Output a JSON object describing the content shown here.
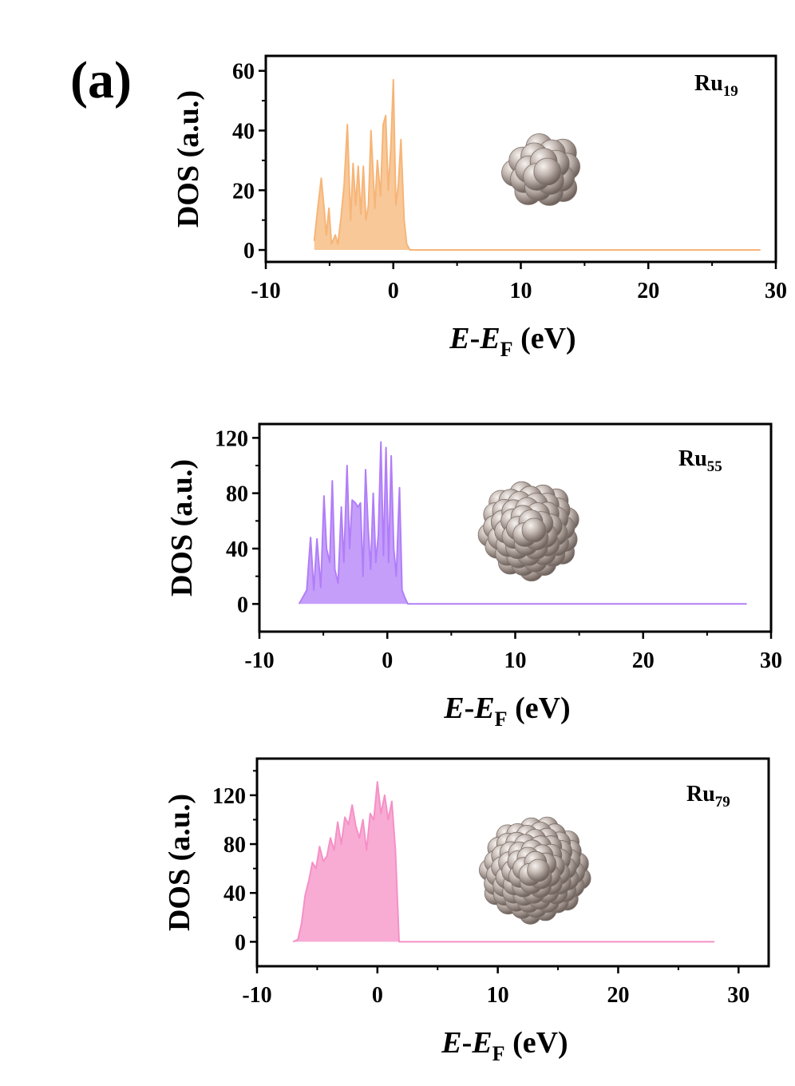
{
  "figure": {
    "panel_label": "(a)"
  },
  "colors": {
    "orange": "#f6b577",
    "purple": "#b17ef8",
    "pink": "#f590c6",
    "atom": "#a99c96"
  },
  "chart_data": [
    {
      "type": "area",
      "title": "",
      "xlabel": "E-E_F (eV)",
      "xlabel_parts": {
        "italic1": "E",
        "dash": "-",
        "italic2": "E",
        "sub": "F",
        "unit": " (eV)"
      },
      "ylabel": "DOS (a.u.)",
      "xlim": [
        -10,
        30
      ],
      "ylim": [
        -4,
        65
      ],
      "x_ticks": [
        -10,
        0,
        10,
        20,
        30
      ],
      "x_tick_labels": [
        "-10",
        "0",
        "10",
        "20",
        "30"
      ],
      "y_ticks": [
        0,
        20,
        40,
        60
      ],
      "y_tick_labels": [
        "0",
        "20",
        "40",
        "60"
      ],
      "annotation": {
        "base": "Ru",
        "sub": "19"
      },
      "grid": false,
      "color": "#f6b577",
      "series": [
        {
          "x": [
            -6.2,
            -5.95,
            -5.65,
            -5.45,
            -5.25,
            -5.05,
            -4.85,
            -4.55,
            -4.35,
            -4.1,
            -3.85,
            -3.6,
            -3.35,
            -3.15,
            -2.95,
            -2.75,
            -2.55,
            -2.35,
            -2.15,
            -1.95,
            -1.75,
            -1.45,
            -1.25,
            -1.0,
            -0.8,
            -0.6,
            -0.4,
            -0.2,
            0.0,
            0.2,
            0.4,
            0.6,
            0.85,
            1.05,
            1.3,
            1.5,
            1.75,
            2.0,
            5.0,
            10.0,
            15.0,
            20.0,
            25.0,
            28.8
          ],
          "y": [
            3,
            13,
            24,
            15,
            5,
            14,
            2,
            5,
            2,
            11,
            22,
            42,
            10,
            29,
            15,
            28,
            12,
            28,
            10,
            15,
            40,
            14,
            30,
            18,
            42,
            45,
            20,
            34,
            57,
            15,
            22,
            37,
            10,
            2,
            0,
            0,
            0,
            0,
            0,
            0,
            0,
            0,
            0,
            0
          ]
        }
      ]
    },
    {
      "type": "area",
      "title": "",
      "xlabel": "E-E_F (eV)",
      "xlabel_parts": {
        "italic1": "E",
        "dash": "-",
        "italic2": "E",
        "sub": "F",
        "unit": " (eV)"
      },
      "ylabel": "DOS (a.u.)",
      "xlim": [
        -10,
        30
      ],
      "ylim": [
        -20,
        130
      ],
      "x_ticks": [
        -10,
        0,
        10,
        20,
        30
      ],
      "x_tick_labels": [
        "-10",
        "0",
        "10",
        "20",
        "30"
      ],
      "y_ticks": [
        0,
        40,
        80,
        120
      ],
      "y_tick_labels": [
        "0",
        "40",
        "80",
        "120"
      ],
      "annotation": {
        "base": "Ru",
        "sub": "55"
      },
      "grid": false,
      "color": "#b17ef8",
      "series": [
        {
          "x": [
            -6.9,
            -6.6,
            -6.3,
            -6.0,
            -5.75,
            -5.5,
            -5.2,
            -4.95,
            -4.75,
            -4.5,
            -4.3,
            -4.1,
            -3.85,
            -3.6,
            -3.4,
            -3.15,
            -2.95,
            -2.75,
            -2.5,
            -2.3,
            -2.1,
            -1.9,
            -1.7,
            -1.5,
            -1.3,
            -1.1,
            -0.9,
            -0.7,
            -0.5,
            -0.3,
            -0.1,
            0.1,
            0.3,
            0.5,
            0.7,
            0.95,
            1.15,
            1.35,
            1.6,
            1.8,
            2.2,
            5.0,
            10.0,
            15.0,
            20.0,
            25.0,
            28.1
          ],
          "y": [
            0,
            5,
            10,
            48,
            10,
            47,
            12,
            78,
            40,
            30,
            89,
            25,
            15,
            70,
            30,
            100,
            40,
            75,
            73,
            70,
            73,
            20,
            97,
            55,
            25,
            80,
            30,
            50,
            117,
            35,
            113,
            30,
            107,
            40,
            20,
            84,
            10,
            5,
            0,
            0,
            0,
            0,
            0,
            0,
            0,
            0,
            0
          ]
        }
      ]
    },
    {
      "type": "area",
      "title": "",
      "xlabel": "E-E_F (eV)",
      "xlabel_parts": {
        "italic1": "E",
        "dash": "-",
        "italic2": "E",
        "sub": "F",
        "unit": " (eV)"
      },
      "ylabel": "DOS (a.u.)",
      "xlim": [
        -10,
        32.5
      ],
      "ylim": [
        -20,
        150
      ],
      "x_ticks": [
        -10,
        0,
        10,
        20,
        30
      ],
      "x_tick_labels": [
        "-10",
        "0",
        "10",
        "20",
        "30"
      ],
      "y_ticks": [
        0,
        40,
        80,
        120
      ],
      "y_tick_labels": [
        "0",
        "40",
        "80",
        "120"
      ],
      "annotation": {
        "base": "Ru",
        "sub": "79"
      },
      "grid": false,
      "color": "#f590c6",
      "series": [
        {
          "x": [
            -7.0,
            -6.6,
            -6.3,
            -6.0,
            -5.7,
            -5.4,
            -5.1,
            -4.8,
            -4.5,
            -4.2,
            -3.9,
            -3.6,
            -3.3,
            -3.0,
            -2.7,
            -2.4,
            -2.1,
            -1.8,
            -1.5,
            -1.2,
            -0.9,
            -0.6,
            -0.3,
            0.0,
            0.3,
            0.6,
            0.9,
            1.2,
            1.5,
            1.8,
            2.2,
            5.0,
            10.0,
            15.0,
            20.0,
            25.0,
            28.0
          ],
          "y": [
            0,
            2,
            15,
            38,
            50,
            65,
            60,
            78,
            66,
            70,
            85,
            75,
            98,
            80,
            102,
            96,
            112,
            95,
            85,
            100,
            75,
            105,
            100,
            131,
            105,
            120,
            100,
            115,
            75,
            0,
            0,
            0,
            0,
            0,
            0,
            0,
            0
          ]
        }
      ]
    }
  ]
}
